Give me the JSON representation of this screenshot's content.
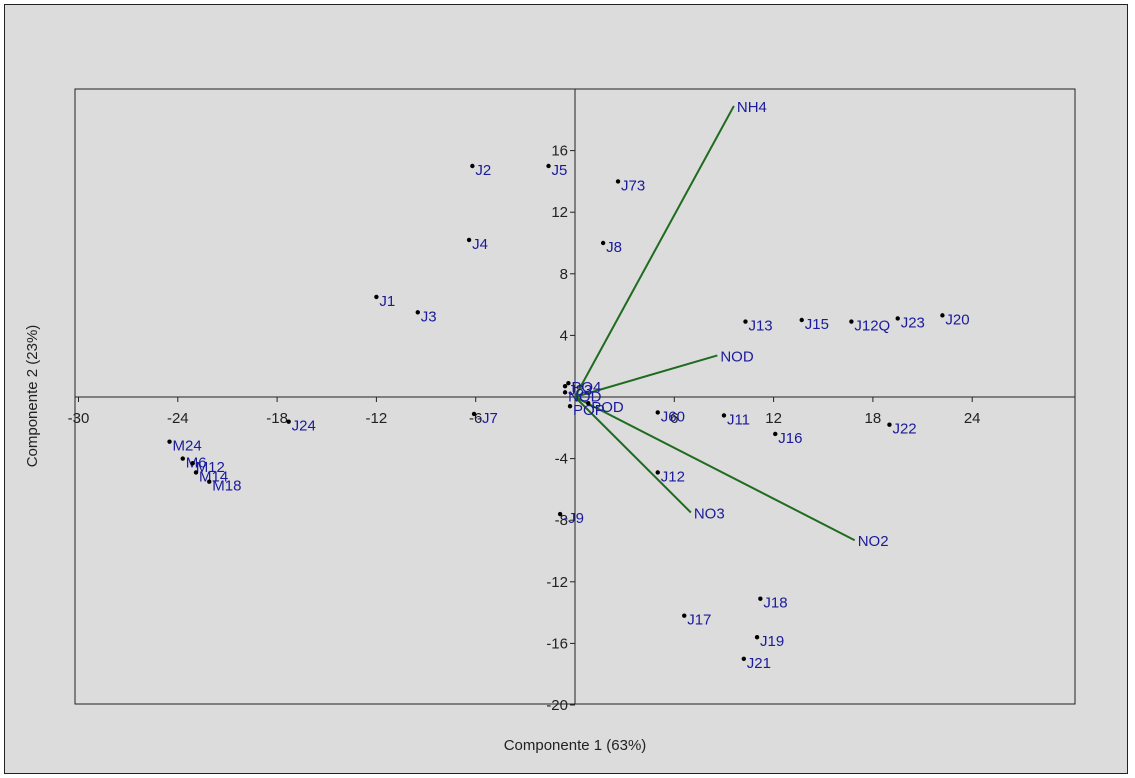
{
  "chart_data": {
    "type": "scatter",
    "title": "",
    "xlabel": "Componente 1 (63%)",
    "ylabel": "Componente 2 (23%)",
    "xlim": [
      -30,
      30
    ],
    "ylim": [
      -20,
      20
    ],
    "xticks": [
      -30,
      -24,
      -18,
      -12,
      -6,
      6,
      12,
      18,
      24
    ],
    "xtick_labels": [
      "-30",
      "-24",
      "-18",
      "-12",
      "-6",
      "6",
      "12",
      "18",
      "24"
    ],
    "yticks": [
      16,
      12,
      8,
      4,
      -4,
      -8,
      -12,
      -16,
      -20
    ],
    "ytick_labels": [
      "16",
      "12",
      "8",
      "4",
      "-4",
      "-8",
      "-12",
      "-16",
      "-20"
    ],
    "grid": false,
    "colors": {
      "points": "#000000",
      "labels": "#1a1a9c",
      "vectors": "#1f6b1f",
      "background": "#dcdcdc"
    },
    "points": [
      {
        "label": "J2",
        "x": -6.2,
        "y": 15.0
      },
      {
        "label": "J5",
        "x": -1.6,
        "y": 15.0
      },
      {
        "label": "J73",
        "x": 2.6,
        "y": 14.0
      },
      {
        "label": "J4",
        "x": -6.4,
        "y": 10.2
      },
      {
        "label": "J8",
        "x": 1.7,
        "y": 10.0
      },
      {
        "label": "J1",
        "x": -12.0,
        "y": 6.5
      },
      {
        "label": "J3",
        "x": -9.5,
        "y": 5.5
      },
      {
        "label": "J13",
        "x": 10.3,
        "y": 4.9
      },
      {
        "label": "J15",
        "x": 13.7,
        "y": 5.0
      },
      {
        "label": "J12Q",
        "x": 16.7,
        "y": 4.9
      },
      {
        "label": "J23",
        "x": 19.5,
        "y": 5.1
      },
      {
        "label": "J20",
        "x": 22.2,
        "y": 5.3
      },
      {
        "label": "J83",
        "x": -0.6,
        "y": 0.7
      },
      {
        "label": "PO4",
        "x": -0.4,
        "y": 0.9
      },
      {
        "label": "NOD",
        "x": -0.6,
        "y": 0.3
      },
      {
        "label": "POP",
        "x": -0.3,
        "y": -0.6
      },
      {
        "label": "POD",
        "x": 0.8,
        "y": -0.4
      },
      {
        "label": "-J7",
        "x": -6.1,
        "y": -1.1
      },
      {
        "label": "J24",
        "x": -17.3,
        "y": -1.6
      },
      {
        "label": "J60",
        "x": 5.0,
        "y": -1.0
      },
      {
        "label": "J11",
        "x": 9.0,
        "y": -1.2
      },
      {
        "label": "J16",
        "x": 12.1,
        "y": -2.4
      },
      {
        "label": "J22",
        "x": 19.0,
        "y": -1.8
      },
      {
        "label": "M24",
        "x": -24.5,
        "y": -2.9
      },
      {
        "label": "M6",
        "x": -23.7,
        "y": -4.0
      },
      {
        "label": "M12",
        "x": -23.1,
        "y": -4.3
      },
      {
        "label": "M14",
        "x": -22.9,
        "y": -4.9
      },
      {
        "label": "M18",
        "x": -22.1,
        "y": -5.5
      },
      {
        "label": "J12",
        "x": 5.0,
        "y": -4.9
      },
      {
        "label": "-J9",
        "x": -0.9,
        "y": -7.6
      },
      {
        "label": "J17",
        "x": 6.6,
        "y": -14.2
      },
      {
        "label": "J18",
        "x": 11.2,
        "y": -13.1
      },
      {
        "label": "J19",
        "x": 11.0,
        "y": -15.6
      },
      {
        "label": "J21",
        "x": 10.2,
        "y": -17.0
      }
    ],
    "vectors": [
      {
        "label": "NH4",
        "x": 9.6,
        "y": 18.9
      },
      {
        "label": "NOD",
        "x": 8.6,
        "y": 2.7
      },
      {
        "label": "NO3",
        "x": 7.0,
        "y": -7.5
      },
      {
        "label": "NO2",
        "x": 16.9,
        "y": -9.3
      }
    ]
  }
}
